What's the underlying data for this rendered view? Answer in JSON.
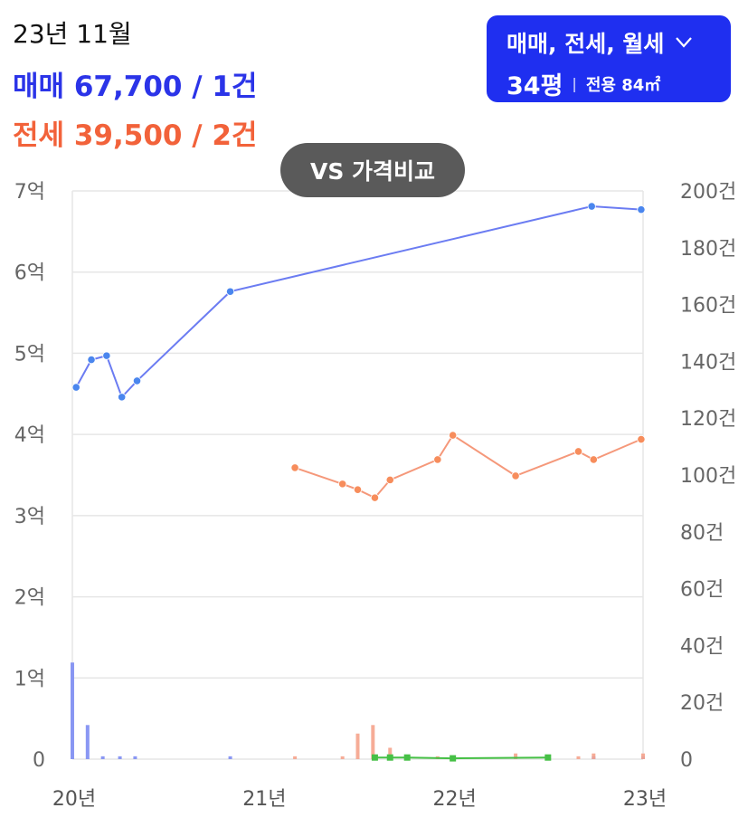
{
  "header": {
    "period": "23년 11월",
    "sale": "매매 67,700 / 1건",
    "jeonse": "전세 39,500 / 2건"
  },
  "filter": {
    "types": "매매, 전세, 월세",
    "size": "34평",
    "area": "전용 84㎡",
    "icon": "chevron-down-icon"
  },
  "compare_button": "VS 가격비교",
  "colors": {
    "sale": "#2b34e8",
    "sale_line": "#6b7cf2",
    "sale_point": "#4a86ee",
    "jeonse": "#f2623a",
    "jeonse_line": "#f5987a",
    "jeonse_point": "#f78d5c",
    "rent_line": "#46c046",
    "filter_bg": "#1f2ff0",
    "grid": "#e6e6e6"
  },
  "chart_data": {
    "type": "line",
    "grid": true,
    "x_labels": [
      "20년",
      "21년",
      "22년",
      "23년"
    ],
    "x_range": [
      2020.0,
      2023.0
    ],
    "y_left": {
      "labels": [
        "0",
        "1억",
        "2억",
        "3억",
        "4억",
        "5억",
        "6억",
        "7억"
      ],
      "range": [
        0,
        7
      ],
      "unit": "억"
    },
    "y_right": {
      "labels": [
        "0",
        "20건",
        "40건",
        "60건",
        "80건",
        "100건",
        "120건",
        "140건",
        "160건",
        "180건",
        "200건"
      ],
      "range": [
        0,
        200
      ],
      "unit": "건"
    },
    "series": [
      {
        "name": "매매",
        "kind": "price",
        "points": [
          [
            2020.02,
            4.58
          ],
          [
            2020.1,
            4.92
          ],
          [
            2020.18,
            4.97
          ],
          [
            2020.26,
            4.46
          ],
          [
            2020.34,
            4.66
          ],
          [
            2020.83,
            5.76
          ],
          [
            2022.73,
            6.81
          ],
          [
            2022.99,
            6.77
          ]
        ]
      },
      {
        "name": "전세",
        "kind": "price",
        "points": [
          [
            2021.17,
            3.59
          ],
          [
            2021.42,
            3.39
          ],
          [
            2021.5,
            3.32
          ],
          [
            2021.59,
            3.22
          ],
          [
            2021.67,
            3.44
          ],
          [
            2021.92,
            3.69
          ],
          [
            2022.0,
            3.99
          ],
          [
            2022.33,
            3.49
          ],
          [
            2022.66,
            3.79
          ],
          [
            2022.74,
            3.69
          ],
          [
            2022.99,
            3.94
          ]
        ]
      },
      {
        "name": "월세",
        "kind": "price",
        "points": [
          [
            2021.59,
            0.02
          ],
          [
            2021.67,
            0.02
          ],
          [
            2021.76,
            0.02
          ],
          [
            2022.0,
            0.01
          ],
          [
            2022.5,
            0.02
          ]
        ]
      },
      {
        "name": "매매 거래량",
        "kind": "volume",
        "bars": [
          [
            2020.0,
            34
          ],
          [
            2020.08,
            12
          ],
          [
            2020.16,
            1
          ],
          [
            2020.25,
            1
          ],
          [
            2020.33,
            1
          ],
          [
            2020.83,
            1
          ],
          [
            2022.74,
            1
          ],
          [
            2023.0,
            1
          ]
        ]
      },
      {
        "name": "전세 거래량",
        "kind": "volume",
        "bars": [
          [
            2021.17,
            1
          ],
          [
            2021.42,
            1
          ],
          [
            2021.5,
            9
          ],
          [
            2021.58,
            12
          ],
          [
            2021.67,
            4
          ],
          [
            2021.76,
            1
          ],
          [
            2021.92,
            1
          ],
          [
            2022.33,
            2
          ],
          [
            2022.66,
            1
          ],
          [
            2022.74,
            2
          ],
          [
            2023.0,
            2
          ]
        ]
      },
      {
        "name": "월세 거래량",
        "kind": "volume",
        "bars": [
          [
            2021.59,
            1
          ],
          [
            2021.67,
            1
          ],
          [
            2021.76,
            1
          ]
        ]
      }
    ]
  }
}
